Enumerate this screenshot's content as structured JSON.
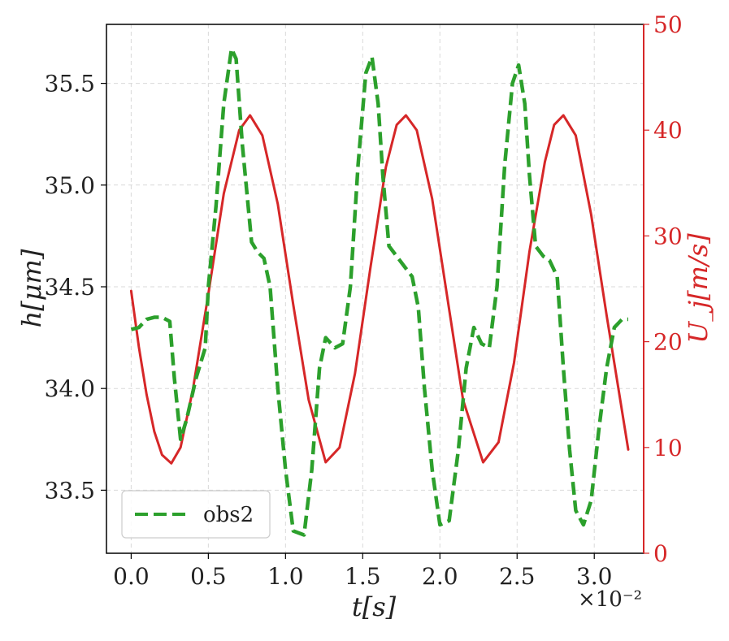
{
  "chart_data": {
    "type": "line",
    "xlabel": "t[s]",
    "ylabel_left": "h[μm]",
    "ylabel_right": "U_j[m/s]",
    "x_multiplier": "×10⁻²",
    "xlim": [
      -0.16,
      3.32
    ],
    "ylim_left": [
      33.19,
      35.79
    ],
    "ylim_right": [
      0,
      50
    ],
    "x_ticks": [
      "0.0",
      "0.5",
      "1.0",
      "1.5",
      "2.0",
      "2.5",
      "3.0"
    ],
    "y_left_ticks": [
      "33.5",
      "34.0",
      "34.5",
      "35.0",
      "35.5"
    ],
    "y_right_ticks": [
      "0",
      "10",
      "20",
      "30",
      "40",
      "50"
    ],
    "grid": true,
    "legend_position": "lower-left",
    "colors": {
      "obs2": "#2ca02c",
      "Uj": "#d62728",
      "axis": "#000000",
      "right_axis": "#d62728"
    },
    "series": [
      {
        "name": "obs2",
        "axis": "left",
        "style": "dashed",
        "x": [
          0.0,
          0.05,
          0.1,
          0.15,
          0.2,
          0.25,
          0.28,
          0.32,
          0.36,
          0.42,
          0.48,
          0.5,
          0.55,
          0.6,
          0.65,
          0.68,
          0.72,
          0.78,
          0.82,
          0.86,
          0.9,
          0.95,
          1.0,
          1.05,
          1.12,
          1.17,
          1.22,
          1.26,
          1.32,
          1.37,
          1.42,
          1.47,
          1.52,
          1.56,
          1.6,
          1.63,
          1.67,
          1.72,
          1.77,
          1.82,
          1.86,
          1.9,
          1.95,
          2.0,
          2.06,
          2.12,
          2.17,
          2.22,
          2.27,
          2.32,
          2.37,
          2.42,
          2.47,
          2.51,
          2.55,
          2.58,
          2.62,
          2.67,
          2.71,
          2.76,
          2.8,
          2.84,
          2.88,
          2.93,
          2.98,
          3.03,
          3.08,
          3.13,
          3.18,
          3.22
        ],
        "y": [
          34.29,
          34.3,
          34.34,
          34.35,
          34.35,
          34.33,
          34.05,
          33.75,
          33.85,
          34.05,
          34.2,
          34.5,
          34.9,
          35.4,
          35.67,
          35.62,
          35.2,
          34.72,
          34.67,
          34.64,
          34.5,
          34.0,
          33.6,
          33.3,
          33.28,
          33.6,
          34.1,
          34.25,
          34.2,
          34.22,
          34.5,
          35.1,
          35.55,
          35.63,
          35.4,
          35.05,
          34.7,
          34.65,
          34.6,
          34.55,
          34.4,
          34.0,
          33.6,
          33.33,
          33.35,
          33.7,
          34.1,
          34.3,
          34.22,
          34.2,
          34.5,
          35.1,
          35.5,
          35.59,
          35.4,
          35.05,
          34.7,
          34.65,
          34.63,
          34.55,
          34.1,
          33.7,
          33.4,
          33.33,
          33.45,
          33.8,
          34.1,
          34.3,
          34.34,
          34.34
        ]
      },
      {
        "name": "U_j",
        "axis": "right",
        "style": "solid",
        "x": [
          0.0,
          0.05,
          0.1,
          0.15,
          0.2,
          0.26,
          0.32,
          0.4,
          0.5,
          0.6,
          0.7,
          0.77,
          0.85,
          0.95,
          1.05,
          1.15,
          1.26,
          1.35,
          1.45,
          1.55,
          1.65,
          1.72,
          1.78,
          1.85,
          1.95,
          2.05,
          2.15,
          2.28,
          2.38,
          2.48,
          2.58,
          2.68,
          2.74,
          2.8,
          2.88,
          2.98,
          3.08,
          3.22
        ],
        "y": [
          24.8,
          19.5,
          15.0,
          11.5,
          9.3,
          8.5,
          10.0,
          15.5,
          24.5,
          34.0,
          40.0,
          41.4,
          39.5,
          33.0,
          23.5,
          14.5,
          8.6,
          10.0,
          17.0,
          27.0,
          36.5,
          40.5,
          41.4,
          40.0,
          33.5,
          24.0,
          14.5,
          8.6,
          10.5,
          18.0,
          28.5,
          37.0,
          40.5,
          41.4,
          39.5,
          32.0,
          22.5,
          9.8
        ]
      }
    ]
  }
}
